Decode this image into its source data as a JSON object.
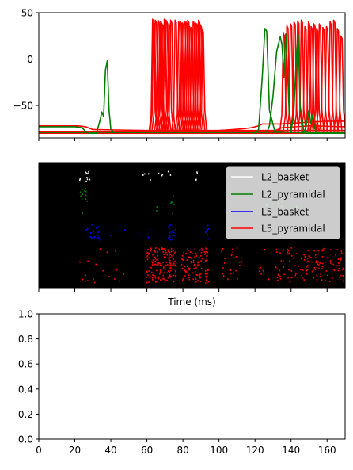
{
  "chart_data": [
    {
      "type": "line",
      "panel": "voltage-traces",
      "xlim": [
        0,
        170
      ],
      "ylim": [
        -85,
        50
      ],
      "yticks": [
        50,
        0,
        -50
      ],
      "ytick_labels": [
        "50",
        "0",
        "−50"
      ],
      "xticks": [
        0,
        20,
        40,
        60,
        80,
        100,
        120,
        140,
        160
      ],
      "xtick_labels_visible": false,
      "grid": false,
      "series": [
        {
          "color": "#008000",
          "traces": [
            {
              "x": [
                0,
                20,
                24,
                26,
                28,
                32,
                34,
                35,
                36,
                37,
                38,
                39,
                40,
                42,
                60,
                100,
                118,
                120,
                122,
                124,
                125.5,
                126.5,
                128,
                131,
                150,
                170
              ],
              "y": [
                -73,
                -73,
                -74,
                -78,
                -80,
                -80,
                -66,
                -57,
                -62,
                -12,
                -2,
                -55,
                -76,
                -79,
                -79,
                -79,
                -79,
                -80,
                -76,
                -20,
                33,
                30,
                -55,
                -78,
                -80,
                -80
              ]
            },
            {
              "x": [
                0,
                126,
                127,
                128,
                130,
                132,
                134,
                135,
                136,
                137,
                138,
                139,
                140,
                141.5,
                143,
                144,
                145,
                147,
                150,
                170
              ],
              "y": [
                -79,
                -79,
                -77,
                -72,
                -40,
                8,
                24,
                15,
                -20,
                27,
                -10,
                -60,
                -78,
                -60,
                5,
                26,
                -50,
                -77,
                -79,
                -79
              ]
            },
            {
              "x": [
                0,
                146,
                148,
                150,
                151,
                152,
                153,
                154,
                156,
                160,
                170
              ],
              "y": [
                -79,
                -79,
                -76,
                -55,
                -70,
                -60,
                -74,
                -79,
                -80,
                -80,
                -80
              ]
            }
          ]
        },
        {
          "color": "#ff0000",
          "spike_width_ms": 4.5,
          "traces": [
            {
              "x": [
                0,
                22,
                26,
                30,
                60,
                100,
                170
              ],
              "y": [
                -72,
                -72,
                -73,
                -76,
                -77,
                -77,
                -77
              ]
            },
            {
              "x": [
                0,
                50,
                70,
                100,
                108,
                114,
                118,
                122,
                124,
                134,
                150,
                160,
                170
              ],
              "y": [
                -78,
                -78,
                -78,
                -77,
                -76,
                -75,
                -74,
                -72,
                -70,
                -70,
                -68,
                -67,
                -67
              ]
            },
            {
              "x": [
                0,
                170
              ],
              "y": [
                -80,
                -80
              ]
            },
            {
              "x": [
                0,
                60,
                80,
                100,
                130,
                135,
                150,
                170
              ],
              "y": [
                -79,
                -79,
                -78,
                -78,
                -78,
                -74,
                -72,
                -73
              ]
            }
          ],
          "spike_times": [
            63.5,
            64,
            65,
            66.5,
            67.5,
            68,
            69,
            70,
            71,
            72.5,
            73.5,
            76,
            78,
            79,
            80,
            81,
            82,
            83,
            84,
            85,
            86,
            87,
            88,
            89,
            90,
            91,
            136,
            138,
            140,
            142,
            144,
            146,
            148,
            150,
            151.5,
            153,
            154.5,
            156,
            158,
            160,
            162,
            164,
            166,
            168
          ],
          "spike_peaks": [
            43,
            40,
            42,
            42,
            38,
            41,
            37,
            43,
            42,
            38,
            42,
            42,
            40,
            40,
            39,
            41,
            40,
            42,
            35,
            34,
            40,
            40,
            38,
            42,
            37,
            32,
            28,
            36,
            38,
            40,
            41,
            42,
            35,
            40,
            35,
            38,
            33,
            38,
            34,
            35,
            40,
            42,
            33,
            25
          ]
        }
      ]
    },
    {
      "type": "scatter",
      "panel": "spike-raster",
      "xlim": [
        0,
        170
      ],
      "xlabel": "Time (ms)",
      "ytick_labels_visible": false,
      "xtick_labels_visible": false,
      "background": "#000000",
      "legend_position": "top-right",
      "series": [
        {
          "name": "L2_basket",
          "color": "#ffffff",
          "row": 0,
          "bursts": [
            [
              21,
              29,
              10
            ],
            [
              57,
              62,
              4
            ],
            [
              65,
              73,
              5
            ],
            [
              86,
              88,
              4
            ]
          ]
        },
        {
          "name": "L2_pyramidal",
          "color": "#008000",
          "row": 1,
          "bursts": [
            [
              21,
              28,
              12
            ],
            [
              64,
              66,
              2
            ],
            [
              73,
              75,
              6
            ],
            [
              126,
              129,
              2
            ],
            [
              132,
              135,
              4
            ],
            [
              141,
              144,
              3
            ]
          ]
        },
        {
          "name": "L5_basket",
          "color": "#0000ff",
          "row": 2,
          "bursts": [
            [
              26,
              36,
              16
            ],
            [
              39,
              41,
              2
            ],
            [
              47,
              49,
              2
            ],
            [
              55,
              57,
              2
            ],
            [
              59,
              62,
              2
            ],
            [
              71,
              76,
              20
            ],
            [
              92,
              94,
              10
            ]
          ]
        },
        {
          "name": "L5_pyramidal",
          "color": "#ff0000",
          "row": 3,
          "bursts": [
            [
              22,
              34,
              10
            ],
            [
              35,
              48,
              8
            ],
            [
              59,
              76,
              150
            ],
            [
              79,
              94,
              110
            ],
            [
              101,
              113,
              25
            ],
            [
              120,
              131,
              8
            ],
            [
              131,
              170,
              140
            ]
          ]
        }
      ]
    },
    {
      "type": "line",
      "panel": "empty-axes",
      "xlim": [
        0,
        170
      ],
      "ylim": [
        0,
        1
      ],
      "xticks": [
        0,
        20,
        40,
        60,
        80,
        100,
        120,
        140,
        160
      ],
      "xtick_labels": [
        "0",
        "20",
        "40",
        "60",
        "80",
        "100",
        "120",
        "140",
        "160"
      ],
      "yticks": [
        0,
        0.2,
        0.4,
        0.6,
        0.8,
        1.0
      ],
      "ytick_labels": [
        "0.0",
        "0.2",
        "0.4",
        "0.6",
        "0.8",
        "1.0"
      ],
      "series": []
    }
  ]
}
